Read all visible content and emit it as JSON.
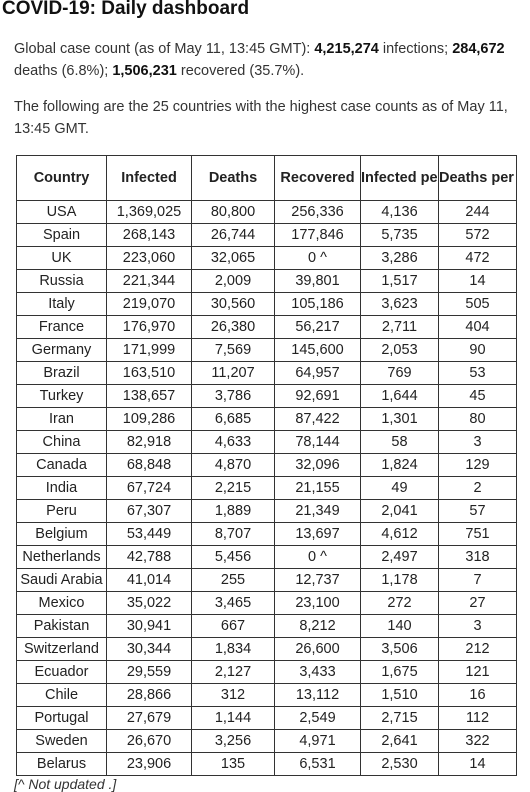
{
  "page": {
    "title": "COVID-19: Daily dashboard",
    "summary": {
      "prefix": "Global case count (as of May 11, 13:45 GMT): ",
      "infections_value": "4,215,274",
      "infections_label": " infections; ",
      "deaths_value": "284,672",
      "deaths_label": " deaths (6.8%); ",
      "recovered_value": "1,506,231",
      "recovered_label": " recovered (35.7%)."
    },
    "intro": "The following are the 25 countries with the highest case counts as of May 11, 13:45 GMT.",
    "footnote": "[^ Not updated .]"
  },
  "table": {
    "headers": [
      "Country",
      "Infected",
      "Deaths",
      "Recovered",
      "Infected per million",
      "Deaths per million"
    ],
    "rows": [
      [
        "USA",
        "1,369,025",
        "80,800",
        "256,336",
        "4,136",
        "244"
      ],
      [
        "Spain",
        "268,143",
        "26,744",
        "177,846",
        "5,735",
        "572"
      ],
      [
        "UK",
        "223,060",
        "32,065",
        "0 ^",
        "3,286",
        "472"
      ],
      [
        "Russia",
        "221,344",
        "2,009",
        "39,801",
        "1,517",
        "14"
      ],
      [
        "Italy",
        "219,070",
        "30,560",
        "105,186",
        "3,623",
        "505"
      ],
      [
        "France",
        "176,970",
        "26,380",
        "56,217",
        "2,711",
        "404"
      ],
      [
        "Germany",
        "171,999",
        "7,569",
        "145,600",
        "2,053",
        "90"
      ],
      [
        "Brazil",
        "163,510",
        "11,207",
        "64,957",
        "769",
        "53"
      ],
      [
        "Turkey",
        "138,657",
        "3,786",
        "92,691",
        "1,644",
        "45"
      ],
      [
        "Iran",
        "109,286",
        "6,685",
        "87,422",
        "1,301",
        "80"
      ],
      [
        "China",
        "82,918",
        "4,633",
        "78,144",
        "58",
        "3"
      ],
      [
        "Canada",
        "68,848",
        "4,870",
        "32,096",
        "1,824",
        "129"
      ],
      [
        "India",
        "67,724",
        "2,215",
        "21,155",
        "49",
        "2"
      ],
      [
        "Peru",
        "67,307",
        "1,889",
        "21,349",
        "2,041",
        "57"
      ],
      [
        "Belgium",
        "53,449",
        "8,707",
        "13,697",
        "4,612",
        "751"
      ],
      [
        "Netherlands",
        "42,788",
        "5,456",
        "0 ^",
        "2,497",
        "318"
      ],
      [
        "Saudi Arabia",
        "41,014",
        "255",
        "12,737",
        "1,178",
        "7"
      ],
      [
        "Mexico",
        "35,022",
        "3,465",
        "23,100",
        "272",
        "27"
      ],
      [
        "Pakistan",
        "30,941",
        "667",
        "8,212",
        "140",
        "3"
      ],
      [
        "Switzerland",
        "30,344",
        "1,834",
        "26,600",
        "3,506",
        "212"
      ],
      [
        "Ecuador",
        "29,559",
        "2,127",
        "3,433",
        "1,675",
        "121"
      ],
      [
        "Chile",
        "28,866",
        "312",
        "13,112",
        "1,510",
        "16"
      ],
      [
        "Portugal",
        "27,679",
        "1,144",
        "2,549",
        "2,715",
        "112"
      ],
      [
        "Sweden",
        "26,670",
        "3,256",
        "4,971",
        "2,641",
        "322"
      ],
      [
        "Belarus",
        "23,906",
        "135",
        "6,531",
        "2,530",
        "14"
      ]
    ]
  }
}
